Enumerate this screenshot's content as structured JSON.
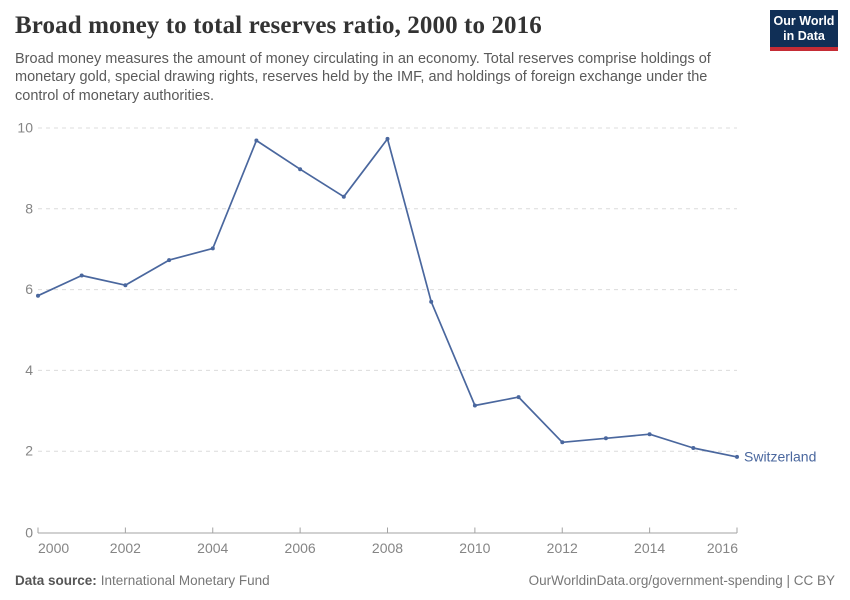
{
  "header": {
    "title": "Broad money to total reserves ratio, 2000 to 2016",
    "subtitle": "Broad money measures the amount of money circulating in an economy. Total reserves comprise holdings of monetary gold, special drawing rights, reserves held by the IMF, and holdings of foreign exchange under the control of monetary authorities.",
    "logo": {
      "line1": "Our World",
      "line2": "in Data"
    }
  },
  "chart_data": {
    "type": "line",
    "title": "Broad money to total reserves ratio, 2000 to 2016",
    "xlabel": "",
    "ylabel": "",
    "x": [
      2000,
      2001,
      2002,
      2003,
      2004,
      2005,
      2006,
      2007,
      2008,
      2009,
      2010,
      2011,
      2012,
      2013,
      2014,
      2015,
      2016
    ],
    "series": [
      {
        "name": "Switzerland",
        "color": "#4a679e",
        "values": [
          5.85,
          6.35,
          6.11,
          6.73,
          7.02,
          9.69,
          8.98,
          8.3,
          9.73,
          5.7,
          3.13,
          3.34,
          2.22,
          2.32,
          2.42,
          2.08,
          1.86
        ]
      }
    ],
    "xlim": [
      2000,
      2016
    ],
    "ylim": [
      0,
      10
    ],
    "x_ticks": [
      2000,
      2002,
      2004,
      2006,
      2008,
      2010,
      2012,
      2014,
      2016
    ],
    "y_ticks": [
      0,
      2,
      4,
      6,
      8,
      10
    ],
    "grid": "horizontal-dashed",
    "legend_position": "end-of-line-label"
  },
  "footer": {
    "datasource_label": "Data source:",
    "datasource_value": "International Monetary Fund",
    "attribution": "OurWorldinData.org/government-spending | CC BY"
  },
  "colors": {
    "series": "#4a679e",
    "grid": "#dcdcdc",
    "axis": "#a3a3a3",
    "tick_label": "#858585",
    "title": "#333333",
    "subtitle": "#5a5a5a",
    "footer": "#777777",
    "logo_background": "#102f56",
    "logo_red_bar": "#c52c35"
  }
}
